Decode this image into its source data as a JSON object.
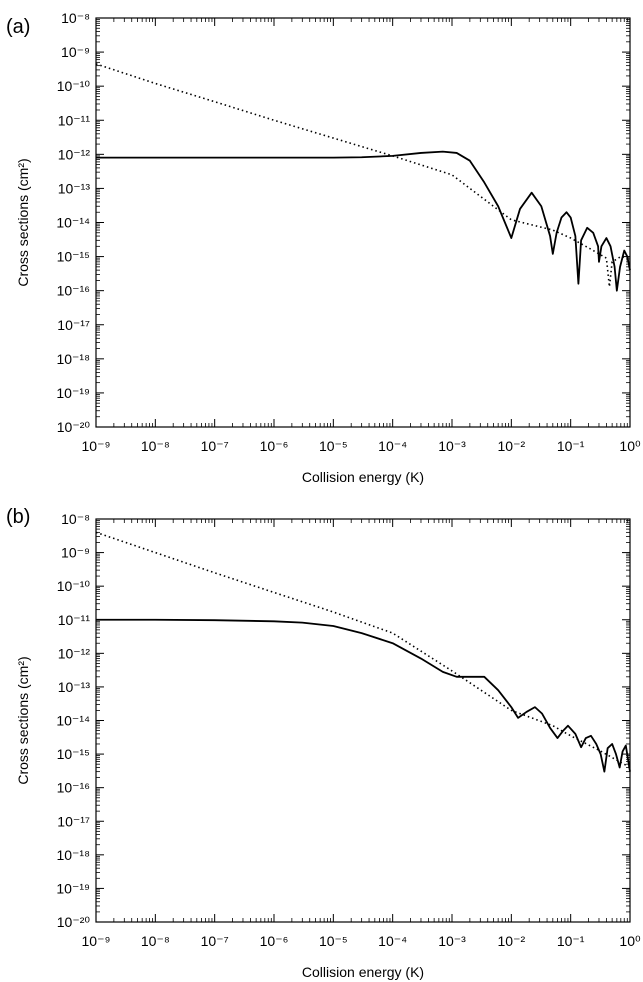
{
  "chart_data": [
    {
      "panel_label": "(a)",
      "type": "line",
      "xlabel": "Collision energy (K)",
      "ylabel": "Cross sections (cm²)",
      "xscale": "log",
      "yscale": "log",
      "xlim": [
        1e-09,
        1
      ],
      "ylim": [
        1e-20,
        1e-08
      ],
      "x_ticks": [
        "10⁻⁹",
        "10⁻⁸",
        "10⁻⁷",
        "10⁻⁶",
        "10⁻⁵",
        "10⁻⁴",
        "10⁻³",
        "10⁻²",
        "10⁻¹",
        "10⁰"
      ],
      "y_ticks": [
        "10⁻²⁰",
        "10⁻¹⁹",
        "10⁻¹⁸",
        "10⁻¹⁷",
        "10⁻¹⁶",
        "10⁻¹⁵",
        "10⁻¹⁴",
        "10⁻¹³",
        "10⁻¹²",
        "10⁻¹¹",
        "10⁻¹⁰",
        "10⁻⁹",
        "10⁻⁸"
      ],
      "grid": false,
      "legend": "none",
      "series": [
        {
          "style": "solid",
          "x": [
            1e-09,
            1e-08,
            1e-07,
            1e-06,
            1e-05,
            3e-05,
            0.0001,
            0.0003,
            0.0007,
            0.0012,
            0.002,
            0.0035,
            0.006,
            0.01,
            0.014,
            0.022,
            0.032,
            0.045,
            0.05,
            0.058,
            0.07,
            0.085,
            0.1,
            0.12,
            0.135,
            0.15,
            0.19,
            0.24,
            0.29,
            0.3,
            0.33,
            0.4,
            0.47,
            0.55,
            0.6,
            0.68,
            0.8,
            0.9,
            1.0
          ],
          "y": [
            8e-13,
            8e-13,
            8e-13,
            8e-13,
            8e-13,
            8.2e-13,
            9e-13,
            1.1e-12,
            1.2e-12,
            1.1e-12,
            6.5e-13,
            1.5e-13,
            3e-14,
            3.5e-15,
            2.5e-14,
            7.5e-14,
            3e-14,
            4e-15,
            1.2e-15,
            5e-15,
            1.4e-14,
            2e-14,
            1.4e-14,
            4e-15,
            1.6e-16,
            3e-15,
            7e-15,
            5e-15,
            2e-15,
            7e-16,
            2e-15,
            3.5e-15,
            2e-15,
            5e-16,
            1e-16,
            5e-16,
            1.5e-15,
            1e-15,
            4e-16
          ]
        },
        {
          "style": "dotted",
          "x": [
            1e-09,
            1e-08,
            1e-07,
            1e-06,
            1e-05,
            0.0001,
            0.001,
            0.01,
            0.05,
            0.1,
            0.2,
            0.4,
            0.45,
            0.5,
            0.7,
            1.0
          ],
          "y": [
            4.5e-10,
            1.2e-10,
            3.5e-11,
            1e-11,
            3e-12,
            9e-13,
            2.5e-13,
            1.2e-14,
            6e-15,
            3.5e-15,
            1.8e-15,
            9e-16,
            1.3e-16,
            7e-16,
            1e-15,
            9e-16
          ]
        }
      ]
    },
    {
      "panel_label": "(b)",
      "type": "line",
      "xlabel": "Collision energy (K)",
      "ylabel": "Cross sections (cm²)",
      "xscale": "log",
      "yscale": "log",
      "xlim": [
        1e-09,
        1
      ],
      "ylim": [
        1e-20,
        1e-08
      ],
      "x_ticks": [
        "10⁻⁹",
        "10⁻⁸",
        "10⁻⁷",
        "10⁻⁶",
        "10⁻⁵",
        "10⁻⁴",
        "10⁻³",
        "10⁻²",
        "10⁻¹",
        "10⁰"
      ],
      "y_ticks": [
        "10⁻²⁰",
        "10⁻¹⁹",
        "10⁻¹⁸",
        "10⁻¹⁷",
        "10⁻¹⁶",
        "10⁻¹⁵",
        "10⁻¹⁴",
        "10⁻¹³",
        "10⁻¹²",
        "10⁻¹¹",
        "10⁻¹⁰",
        "10⁻⁹",
        "10⁻⁸"
      ],
      "grid": false,
      "legend": "none",
      "series": [
        {
          "style": "solid",
          "x": [
            1e-09,
            1e-08,
            1e-07,
            1e-06,
            3e-06,
            1e-05,
            3e-05,
            0.0001,
            0.0003,
            0.0007,
            0.0012,
            0.002,
            0.0035,
            0.006,
            0.01,
            0.013,
            0.018,
            0.025,
            0.033,
            0.045,
            0.06,
            0.075,
            0.09,
            0.12,
            0.15,
            0.18,
            0.22,
            0.27,
            0.32,
            0.37,
            0.42,
            0.5,
            0.58,
            0.67,
            0.75,
            0.85,
            1.0
          ],
          "y": [
            1e-11,
            1e-11,
            9.7e-12,
            9e-12,
            8.2e-12,
            6.5e-12,
            4e-12,
            2e-12,
            7e-13,
            2.8e-13,
            2e-13,
            2e-13,
            2e-13,
            8e-14,
            2.5e-14,
            1.2e-14,
            1.8e-14,
            2.5e-14,
            1.6e-14,
            6e-15,
            3e-15,
            5e-15,
            7e-15,
            4e-15,
            1.6e-15,
            3e-15,
            3.5e-15,
            2e-15,
            1e-15,
            3e-16,
            1.5e-15,
            2e-15,
            1e-15,
            4e-16,
            1.2e-15,
            1.8e-15,
            3e-16
          ]
        },
        {
          "style": "dotted",
          "x": [
            1e-09,
            1e-08,
            1e-07,
            1e-06,
            1e-05,
            0.0001,
            0.001,
            0.01,
            0.05,
            0.1,
            0.3,
            1.0
          ],
          "y": [
            4e-09,
            1e-09,
            2.5e-10,
            6.5e-11,
            1.7e-11,
            4e-12,
            3e-13,
            2e-14,
            7e-15,
            3.5e-15,
            1.3e-15,
            4e-16
          ]
        }
      ]
    }
  ]
}
